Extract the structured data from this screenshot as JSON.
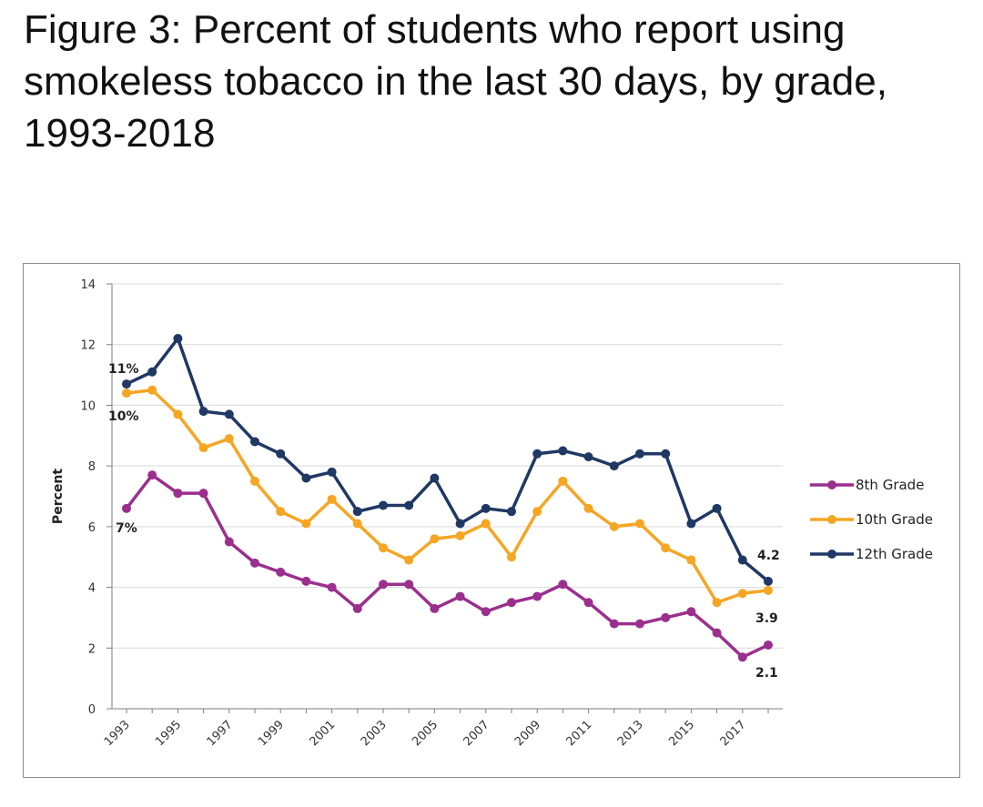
{
  "chart_data": {
    "type": "line",
    "title": "Figure 3: Percent of students who report using smokeless tobacco in the last 30 days, by grade, 1993-2018",
    "xlabel": "",
    "ylabel": "Percent",
    "ylim": [
      0,
      14
    ],
    "yticks": [
      0,
      2,
      4,
      6,
      8,
      10,
      12,
      14
    ],
    "x": [
      1993,
      1994,
      1995,
      1996,
      1997,
      1998,
      1999,
      2000,
      2001,
      2002,
      2003,
      2004,
      2005,
      2006,
      2007,
      2008,
      2009,
      2010,
      2011,
      2012,
      2013,
      2014,
      2015,
      2016,
      2017,
      2018
    ],
    "xtick_labels": [
      "1993",
      "1995",
      "1997",
      "1999",
      "2001",
      "2003",
      "2005",
      "2007",
      "2009",
      "2011",
      "2013",
      "2015",
      "2017"
    ],
    "grid": true,
    "legend_position": "right",
    "series": [
      {
        "name": "8th Grade",
        "color": "#9B2F8E",
        "values": [
          6.6,
          7.7,
          7.1,
          7.1,
          5.5,
          4.8,
          4.5,
          4.2,
          4.0,
          3.3,
          4.1,
          4.1,
          3.3,
          3.7,
          3.2,
          3.5,
          3.7,
          4.1,
          3.5,
          2.8,
          2.8,
          3.0,
          3.2,
          2.5,
          1.7,
          2.1
        ]
      },
      {
        "name": "10th Grade",
        "color": "#F5A623",
        "values": [
          10.4,
          10.5,
          9.7,
          8.6,
          8.9,
          7.5,
          6.5,
          6.1,
          6.9,
          6.1,
          5.3,
          4.9,
          5.6,
          5.7,
          6.1,
          5.0,
          6.5,
          7.5,
          6.6,
          6.0,
          6.1,
          5.3,
          4.9,
          3.5,
          3.8,
          3.9
        ]
      },
      {
        "name": "12th Grade",
        "color": "#1F3864",
        "values": [
          10.7,
          11.1,
          12.2,
          9.8,
          9.7,
          8.8,
          8.4,
          7.6,
          7.8,
          6.5,
          6.7,
          6.7,
          7.6,
          6.1,
          6.6,
          6.5,
          8.4,
          8.5,
          8.3,
          8.0,
          8.4,
          8.4,
          6.1,
          6.6,
          4.9,
          4.2
        ]
      }
    ],
    "annotations": [
      {
        "text": "11%",
        "series": "12th Grade",
        "x": 1993
      },
      {
        "text": "10%",
        "series": "10th Grade",
        "x": 1993
      },
      {
        "text": "7%",
        "series": "8th Grade",
        "x": 1993
      },
      {
        "text": "4.2",
        "series": "12th Grade",
        "x": 2018
      },
      {
        "text": "3.9",
        "series": "10th Grade",
        "x": 2018
      },
      {
        "text": "2.1",
        "series": "8th Grade",
        "x": 2018
      }
    ]
  }
}
